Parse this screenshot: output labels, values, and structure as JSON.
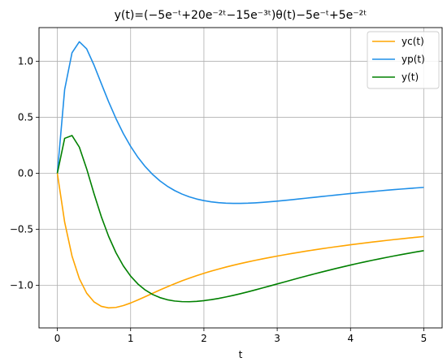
{
  "chart_data": {
    "type": "line",
    "title": "y(t)=(−5e⁻ᵗ+20e⁻²ᵗ−15e⁻³ᵗ)θ(t)−5e⁻ᵗ+5e⁻²ᵗ",
    "xlabel": "t",
    "ylabel": "",
    "xlim": [
      -0.25,
      5.25
    ],
    "ylim": [
      -1.38,
      1.3
    ],
    "xticks": [
      "0",
      "1",
      "2",
      "3",
      "4",
      "5"
    ],
    "yticks": [
      "−1.0",
      "−0.5",
      "0.0",
      "0.5",
      "1.0"
    ],
    "grid": true,
    "legend_position": "top-right",
    "x": [
      0.0,
      0.1,
      0.2,
      0.3,
      0.4,
      0.5,
      0.6,
      0.7,
      0.8,
      0.9,
      1.0,
      1.1,
      1.2,
      1.3,
      1.4,
      1.5,
      1.6,
      1.7,
      1.8,
      1.9,
      2.0,
      2.1,
      2.2,
      2.3,
      2.4,
      2.5,
      2.6,
      2.7,
      2.8,
      2.9,
      3.0,
      3.1,
      3.2,
      3.3,
      3.4,
      3.5,
      3.6,
      3.7,
      3.8,
      3.9,
      4.0,
      4.1,
      4.2,
      4.3,
      4.4,
      4.5,
      4.6,
      4.7,
      4.8,
      4.9,
      5.0
    ],
    "series": [
      {
        "name": "yc(t)",
        "color": "#ffa500",
        "values": [
          0.0,
          -0.4362,
          -0.7379,
          -0.9401,
          -1.07,
          -1.1474,
          -1.1875,
          -1.2013,
          -1.1971,
          -1.181,
          -1.1577,
          -1.1303,
          -1.1011,
          -1.0712,
          -1.0417,
          -1.0131,
          -0.9859,
          -0.9602,
          -0.9361,
          -0.9136,
          -0.8925,
          -0.8729,
          -0.8546,
          -0.8373,
          -0.821,
          -0.8057,
          -0.7911,
          -0.7772,
          -0.7639,
          -0.7512,
          -0.7389,
          -0.7272,
          -0.7159,
          -0.7049,
          -0.6944,
          -0.6842,
          -0.6744,
          -0.6649,
          -0.6557,
          -0.6468,
          -0.6381,
          -0.6297,
          -0.6216,
          -0.6137,
          -0.6061,
          -0.5986,
          -0.5914,
          -0.5843,
          -0.5775,
          -0.5708,
          -0.5643
        ]
      },
      {
        "name": "yp(t)",
        "color": "#1f8fe8",
        "values": [
          0.0,
          0.7479,
          1.0746,
          1.1735,
          1.11,
          0.966,
          0.8004,
          0.638,
          0.488,
          0.355,
          0.24,
          0.1418,
          0.059,
          -0.0104,
          -0.0679,
          -0.1154,
          -0.1541,
          -0.1853,
          -0.2102,
          -0.2295,
          -0.2442,
          -0.2549,
          -0.2622,
          -0.2666,
          -0.2686,
          -0.2686,
          -0.2669,
          -0.2638,
          -0.2596,
          -0.2545,
          -0.2487,
          -0.2424,
          -0.2358,
          -0.229,
          -0.222,
          -0.215,
          -0.208,
          -0.2011,
          -0.1943,
          -0.1876,
          -0.181,
          -0.1747,
          -0.1685,
          -0.1625,
          -0.1567,
          -0.1511,
          -0.1457,
          -0.1405,
          -0.1355,
          -0.1306,
          -0.126
        ]
      },
      {
        "name": "y(t)",
        "color": "#008000",
        "values": [
          0.0,
          0.3117,
          0.3367,
          0.2334,
          0.04,
          -0.1814,
          -0.3871,
          -0.5633,
          -0.7091,
          -0.826,
          -0.9177,
          -0.9885,
          -1.0421,
          -1.0816,
          -1.1096,
          -1.1285,
          -1.14,
          -1.1455,
          -1.1463,
          -1.1431,
          -1.1367,
          -1.1278,
          -1.1168,
          -1.1039,
          -1.0896,
          -1.0743,
          -1.058,
          -1.041,
          -1.0235,
          -1.0057,
          -0.9876,
          -0.9696,
          -0.9517,
          -0.9339,
          -0.9164,
          -0.8992,
          -0.8824,
          -0.866,
          -0.85,
          -0.8344,
          -0.8191,
          -0.8044,
          -0.7901,
          -0.7762,
          -0.7628,
          -0.7497,
          -0.7371,
          -0.7248,
          -0.713,
          -0.7014,
          -0.6903
        ]
      }
    ]
  }
}
